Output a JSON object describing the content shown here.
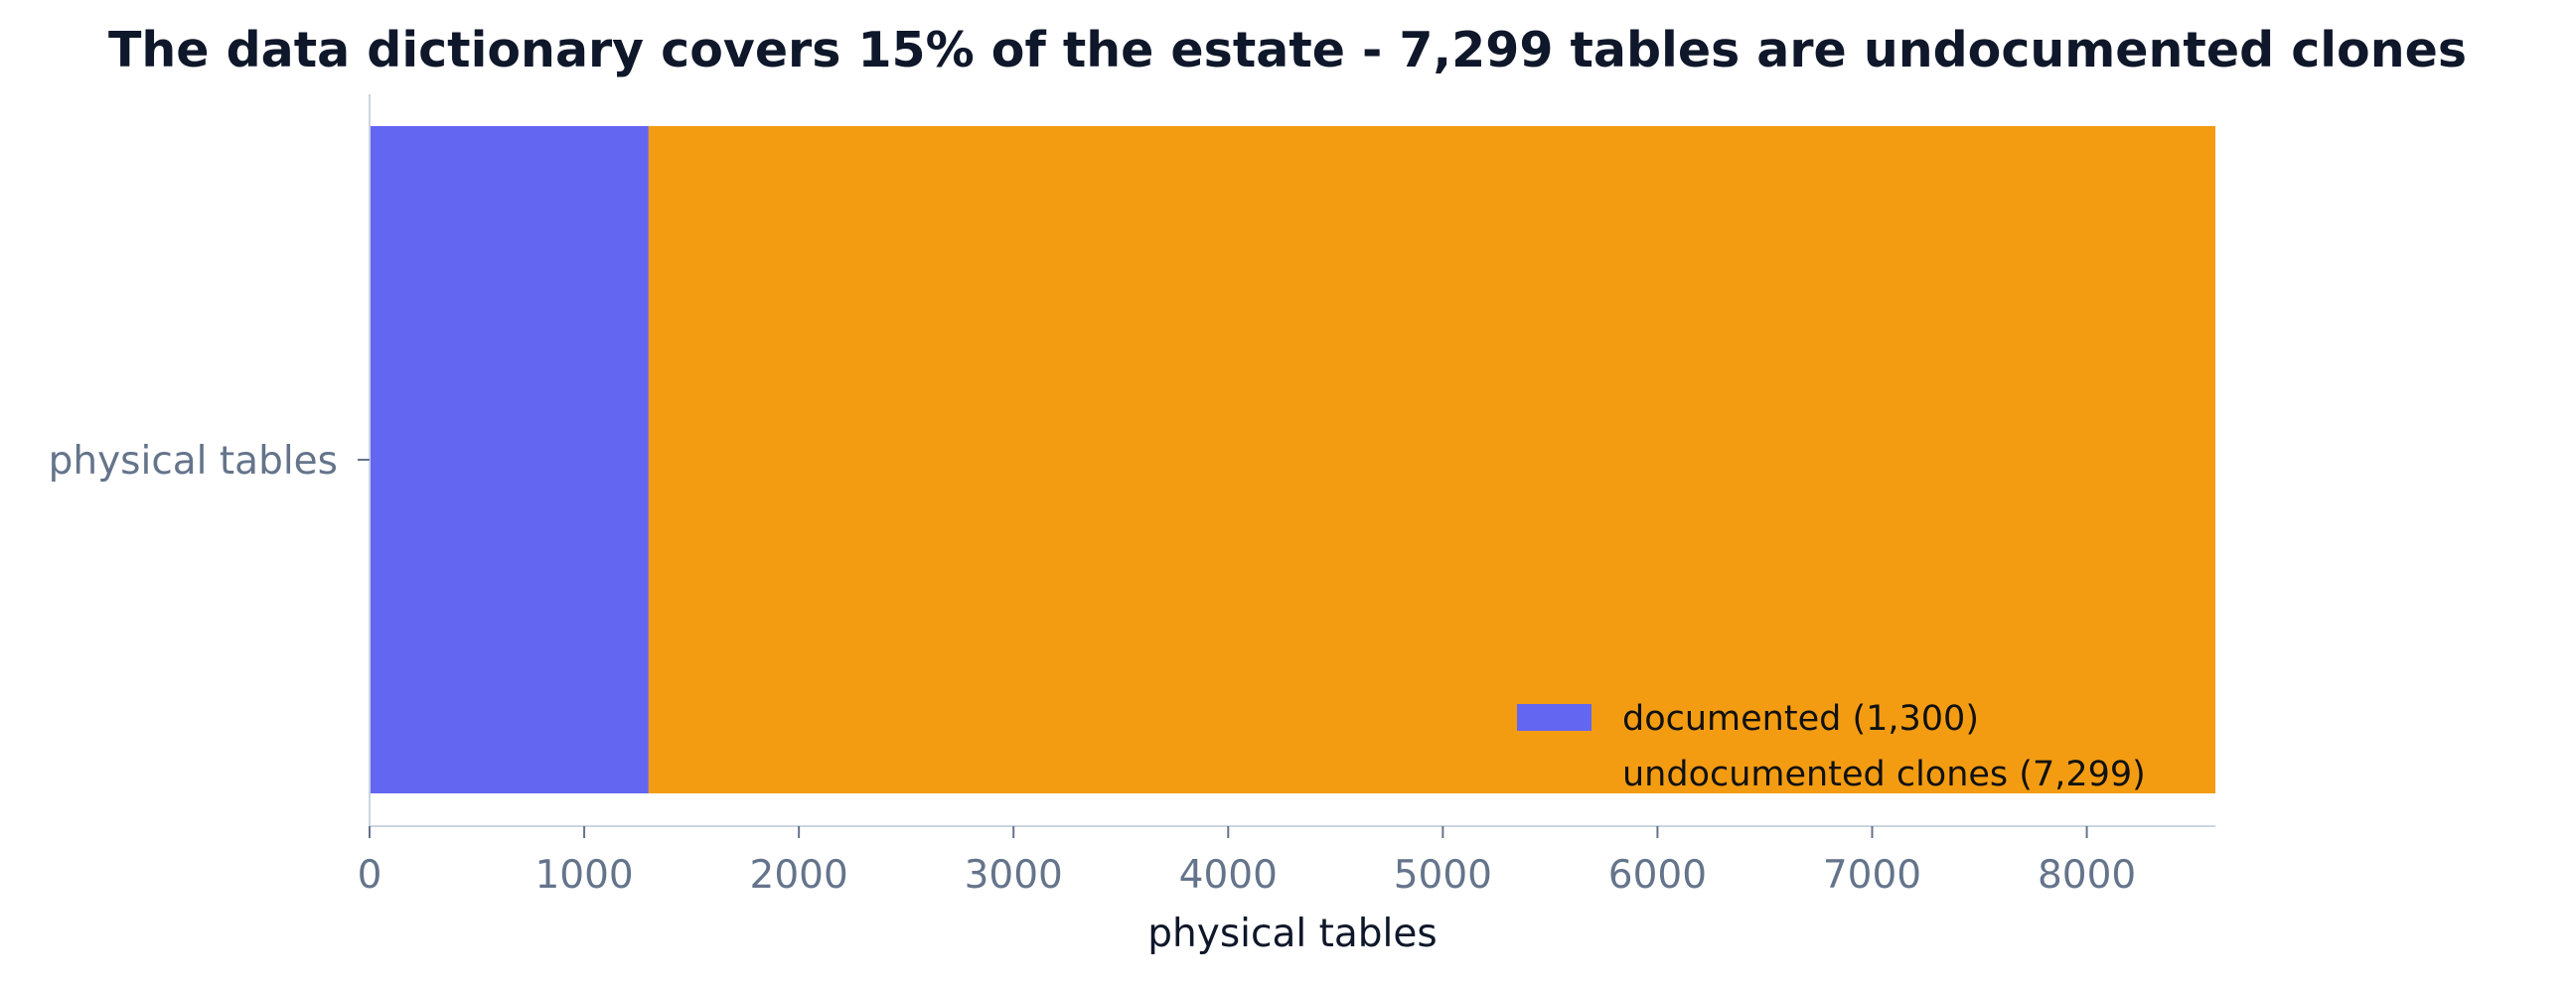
{
  "chart_data": {
    "type": "bar",
    "orientation": "horizontal",
    "stacked": true,
    "title": "The data dictionary covers 15% of the estate - 7,299 tables are undocumented clones",
    "xlabel": "physical tables",
    "ylabel": "",
    "categories": [
      "physical tables"
    ],
    "series": [
      {
        "name": "documented (1,300)",
        "values": [
          1300
        ],
        "color": "#6366f1"
      },
      {
        "name": "undocumented clones (7,299)",
        "values": [
          7299
        ],
        "color": "#f39c12"
      }
    ],
    "xlim": [
      0,
      8599
    ],
    "xticks": [
      0,
      1000,
      2000,
      3000,
      4000,
      5000,
      6000,
      7000,
      8000
    ],
    "grid": false,
    "legend_position": "lower-right",
    "colors": {
      "title": "#0f172a",
      "tick_label": "#64748b",
      "axis_label": "#0f172a",
      "spine": "#cbd5e1",
      "legend_text": "#111111"
    }
  }
}
